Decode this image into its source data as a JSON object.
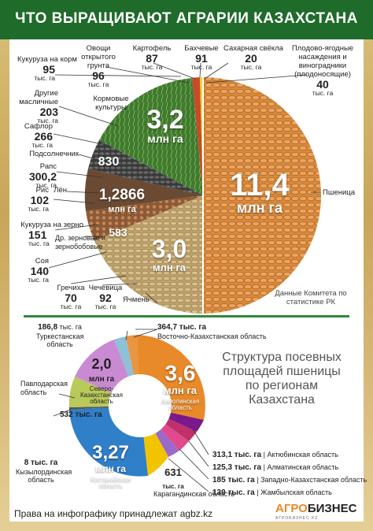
{
  "header": {
    "title": "ЧТО ВЫРАЩИВАЮТ АГРАРИИ КАЗАХСТАНА"
  },
  "pie_top": {
    "wheat": {
      "value": "11,4",
      "unit": "млн га",
      "name": "Пшеница"
    },
    "fodder": {
      "value": "3,2",
      "unit": "млн га",
      "name": "Кормовые культуры"
    },
    "barley": {
      "value": "3,0",
      "unit": "млн га",
      "name": "Ячмень"
    },
    "oilseeds": {
      "value": "1,2866",
      "unit": "млн га"
    },
    "mid_830": "830",
    "mid_583": "583",
    "items": [
      {
        "name": "Кукуруза на корм",
        "value": "95",
        "unit": "тыс. га"
      },
      {
        "name": "Овощи открытого грунта",
        "value": "96",
        "unit": "тыс. га"
      },
      {
        "name": "Картофель",
        "value": "87",
        "unit": "тыс. га"
      },
      {
        "name": "Бахчевые",
        "value": "91",
        "unit": "тыс. га"
      },
      {
        "name": "Сахарная свёкла",
        "value": "20",
        "unit": "тыс. га"
      },
      {
        "name": "Плодово-ягодные насаждения и виноградники (плодоносящие)",
        "value": "40",
        "unit": "тыс. га"
      },
      {
        "name": "Другие масличные",
        "value": "203",
        "unit": "тыс. га"
      },
      {
        "name": "Сафлор",
        "value": "266",
        "unit": "тыс. га"
      },
      {
        "name": "Подсолнечник",
        "value": "",
        "unit": ""
      },
      {
        "name": "Рапс",
        "value": "300,2",
        "unit": "тыс. га"
      },
      {
        "name": "Лён",
        "value": "",
        "unit": ""
      },
      {
        "name": "Рис",
        "value": "102",
        "unit": "тыс. га"
      },
      {
        "name": "Кукуруза на зерно",
        "value": "151",
        "unit": "тыс. га"
      },
      {
        "name": "Др. зерновые и зернобобовые",
        "value": "",
        "unit": ""
      },
      {
        "name": "Соя",
        "value": "140",
        "unit": "тыс. га"
      },
      {
        "name": "Гречиха",
        "value": "70",
        "unit": "тыс. га"
      },
      {
        "name": "Чечевица",
        "value": "92",
        "unit": "тыс. га"
      }
    ],
    "source": "Данные Комитета по статистике РК"
  },
  "regions": {
    "title": "Структура посевных площадей пшеницы по регионам Казахстана",
    "akmola": {
      "value": "3,6",
      "unit": "млн га",
      "name": "Акмолинская область"
    },
    "kostanay": {
      "value": "3,27",
      "unit": "млн га",
      "name": "Костанайская область"
    },
    "north_kz": {
      "value": "2,0",
      "unit": "млн га",
      "name": "Северо-Казахстанская область"
    },
    "karaganda": {
      "value": "631",
      "unit": "тыс. га",
      "name": "Карагандинская область"
    },
    "turkestan": {
      "value": "186,8",
      "unit": "тыс. га",
      "name": "Туркестанская область"
    },
    "east_kz": {
      "value": "364,7 тыс. га",
      "name": "Восточно-Казахстанская область"
    },
    "pavlodar": {
      "value": "532 тыс. га",
      "name": "Павлодарская область"
    },
    "kyzylorda": {
      "value": "8 тыс. га",
      "name": "Кызылординская область"
    },
    "aktobe": {
      "value": "313,1 тыс. га",
      "name": "| Актюбинская область"
    },
    "almaty": {
      "value": "125,3 тыс. га",
      "name": "| Алматинская область"
    },
    "west_kz": {
      "value": "185 тыс. га",
      "name": "| Западно-Казахстанская область"
    },
    "zhambyl": {
      "value": "139 тыс. га",
      "name": "| Жамбылская область"
    }
  },
  "footer": {
    "rights": "Права на инфографику принадлежат agbz.kz"
  },
  "brand": {
    "name_a": "АГРО",
    "name_b": "БИЗНЕС",
    "sub": "АГРОБИЗНЕС.KZ"
  },
  "colors": {
    "header": "#1f6b2a",
    "wheat": "#d98a3a",
    "fodder": "#4e8a3a",
    "barley": "#c9b07a",
    "akmola": "#e8892a",
    "kostanay": "#2f7fc9",
    "north_kz": "#c98ad1",
    "karaganda": "#f2c400",
    "pavlodar": "#b9c95a"
  }
}
